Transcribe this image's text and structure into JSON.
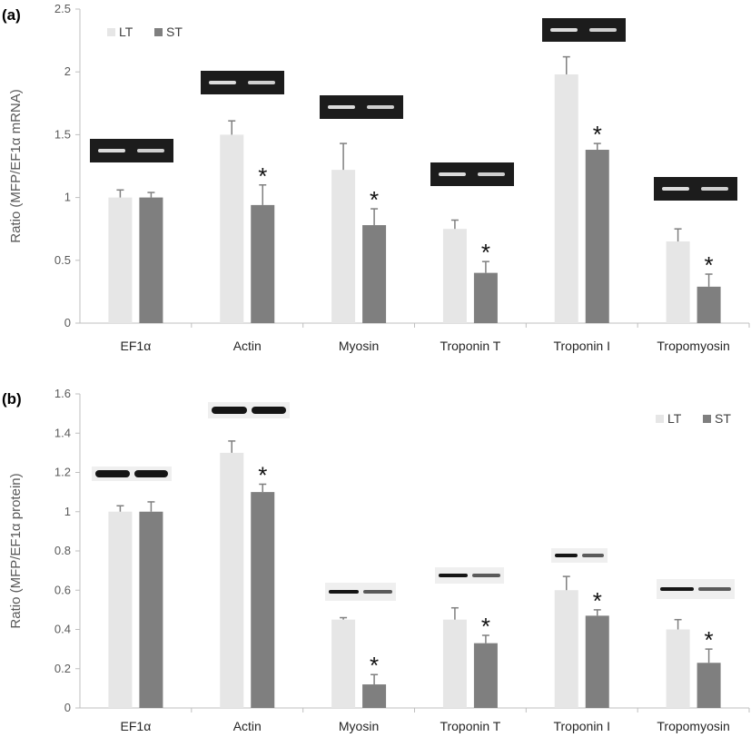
{
  "colors": {
    "LT": "#e6e6e6",
    "ST": "#7f7f7f",
    "error": "#7f7f7f",
    "axis": "#bfbfbf"
  },
  "chart_data": [
    {
      "panel_label": "(a)",
      "type": "bar",
      "ylabel": "Ratio (MFP/EF1α mRNA)",
      "ylim": [
        0,
        2.5
      ],
      "yticks": [
        "0",
        "0.5",
        "1",
        "1.5",
        "2",
        "2.5"
      ],
      "legend_position": "top-left",
      "grid": false,
      "categories": [
        "EF1α",
        "Actin",
        "Myosin",
        "Troponin T",
        "Troponin I",
        "Tropomyosin"
      ],
      "series": [
        {
          "name": "LT",
          "values": [
            1.0,
            1.5,
            1.22,
            0.75,
            1.98,
            0.65
          ],
          "errors": [
            0.06,
            0.11,
            0.21,
            0.07,
            0.14,
            0.1
          ]
        },
        {
          "name": "ST",
          "values": [
            1.0,
            0.94,
            0.78,
            0.4,
            1.38,
            0.29
          ],
          "errors": [
            0.04,
            0.16,
            0.13,
            0.09,
            0.05,
            0.1
          ]
        }
      ],
      "significance": [
        "",
        "*",
        "*",
        "*",
        "*",
        "*"
      ],
      "blot_type": "gel"
    },
    {
      "panel_label": "(b)",
      "type": "bar",
      "ylabel": "Ratio (MFP/EF1α protein)",
      "ylim": [
        0,
        1.6
      ],
      "yticks": [
        "0",
        "0.2",
        "0.4",
        "0.6",
        "0.8",
        "1",
        "1.2",
        "1.4",
        "1.6"
      ],
      "legend_position": "top-right",
      "grid": false,
      "categories": [
        "EF1α",
        "Actin",
        "Myosin",
        "Troponin T",
        "Troponin I",
        "Tropomyosin"
      ],
      "series": [
        {
          "name": "LT",
          "values": [
            1.0,
            1.3,
            0.45,
            0.45,
            0.6,
            0.4
          ],
          "errors": [
            0.03,
            0.06,
            0.01,
            0.06,
            0.07,
            0.05
          ]
        },
        {
          "name": "ST",
          "values": [
            1.0,
            1.1,
            0.12,
            0.33,
            0.47,
            0.23
          ],
          "errors": [
            0.05,
            0.04,
            0.05,
            0.04,
            0.03,
            0.07
          ]
        }
      ],
      "significance": [
        "",
        "*",
        "*",
        "*",
        "*",
        "*"
      ],
      "blot_type": "western"
    }
  ]
}
